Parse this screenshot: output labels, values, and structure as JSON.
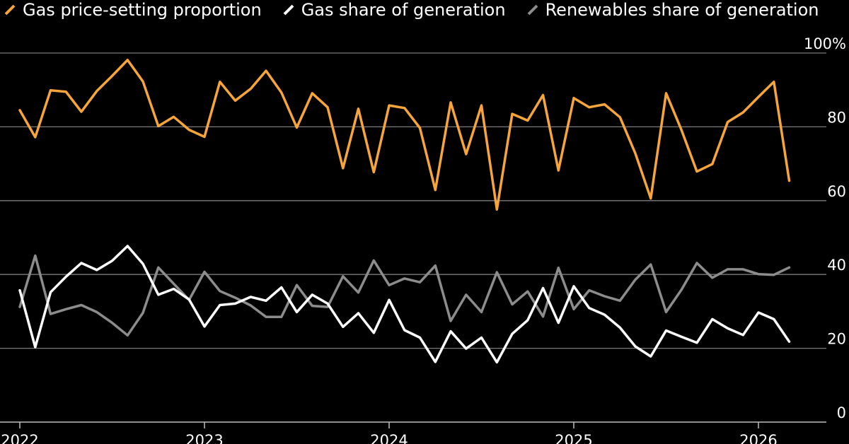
{
  "chart_data": {
    "type": "line",
    "title": "",
    "xlabel": "",
    "ylabel": "",
    "ylim": [
      0,
      100
    ],
    "y_ticks": [
      {
        "value": 100,
        "label": "100%"
      },
      {
        "value": 80,
        "label": "80"
      },
      {
        "value": 60,
        "label": "60"
      },
      {
        "value": 40,
        "label": "40"
      },
      {
        "value": 20,
        "label": "20"
      },
      {
        "value": 0,
        "label": "0"
      }
    ],
    "x_ticks": [
      {
        "value": "2022-01",
        "label": "2022"
      },
      {
        "value": "2023-01",
        "label": "2023"
      },
      {
        "value": "2024-01",
        "label": "2024"
      },
      {
        "value": "2025-01",
        "label": "2025"
      },
      {
        "value": "2026-01",
        "label": "2026"
      }
    ],
    "grid": true,
    "legend_position": "top",
    "x": [
      "2022-01",
      "2022-02",
      "2022-03",
      "2022-04",
      "2022-05",
      "2022-06",
      "2022-07",
      "2022-08",
      "2022-09",
      "2022-10",
      "2022-11",
      "2022-12",
      "2023-01",
      "2023-02",
      "2023-03",
      "2023-04",
      "2023-05",
      "2023-06",
      "2023-07",
      "2023-08",
      "2023-09",
      "2023-10",
      "2023-11",
      "2023-12",
      "2024-01",
      "2024-02",
      "2024-03",
      "2024-04",
      "2024-05",
      "2024-06",
      "2024-07",
      "2024-08",
      "2024-09",
      "2024-10",
      "2024-11",
      "2024-12",
      "2025-01",
      "2025-02",
      "2025-03",
      "2025-04",
      "2025-05",
      "2025-06",
      "2025-07",
      "2025-08",
      "2025-09",
      "2025-10",
      "2025-11",
      "2025-12",
      "2026-01",
      "2026-02",
      "2026-03"
    ],
    "series": [
      {
        "name": "Gas price-setting proportion",
        "color": "#f5a53a",
        "values": [
          84.5,
          77.2,
          89.9,
          89.5,
          84.1,
          89.7,
          93.8,
          98.1,
          92.3,
          80.2,
          82.7,
          79.2,
          77.3,
          92.2,
          87.1,
          90.3,
          95.2,
          89.3,
          79.8,
          89.1,
          85.3,
          68.8,
          84.9,
          67.7,
          85.8,
          85.1,
          79.7,
          62.9,
          86.6,
          72.6,
          85.8,
          57.6,
          83.5,
          81.7,
          88.6,
          68.2,
          87.8,
          85.3,
          86.1,
          82.6,
          72.8,
          60.6,
          89.1,
          79.1,
          67.9,
          69.9,
          81.3,
          83.9,
          88.1,
          92.2,
          65.4
        ]
      },
      {
        "name": "Gas share of generation",
        "color": "#ffffff",
        "values": [
          35.7,
          20.3,
          35.2,
          39.4,
          43.1,
          41.2,
          43.7,
          47.7,
          42.9,
          34.5,
          36.1,
          33.2,
          25.9,
          31.7,
          32.1,
          33.9,
          32.9,
          36.5,
          29.8,
          34.5,
          32.1,
          25.8,
          29.5,
          24.2,
          33.1,
          24.9,
          22.9,
          16.3,
          24.6,
          19.9,
          22.9,
          16.2,
          23.9,
          27.6,
          36.3,
          26.9,
          36.8,
          30.9,
          29.1,
          25.6,
          20.5,
          17.8,
          24.8,
          23.1,
          21.5,
          27.9,
          25.4,
          23.6,
          29.7,
          27.9,
          21.8
        ]
      },
      {
        "name": "Renewables share of generation",
        "color": "#8c8c8c",
        "values": [
          31.2,
          45.1,
          29.3,
          30.6,
          31.7,
          29.8,
          26.9,
          23.5,
          29.6,
          41.9,
          37.5,
          33.1,
          40.7,
          35.5,
          33.7,
          31.6,
          28.5,
          28.5,
          37.1,
          31.5,
          31.2,
          39.5,
          35.1,
          43.8,
          37.1,
          38.9,
          37.9,
          42.4,
          27.4,
          34.5,
          29.8,
          40.6,
          31.9,
          35.4,
          28.6,
          41.8,
          30.6,
          35.7,
          34.1,
          32.9,
          38.6,
          42.7,
          29.8,
          35.9,
          43.1,
          39.1,
          41.4,
          41.4,
          40.1,
          39.9,
          41.9
        ]
      }
    ]
  }
}
